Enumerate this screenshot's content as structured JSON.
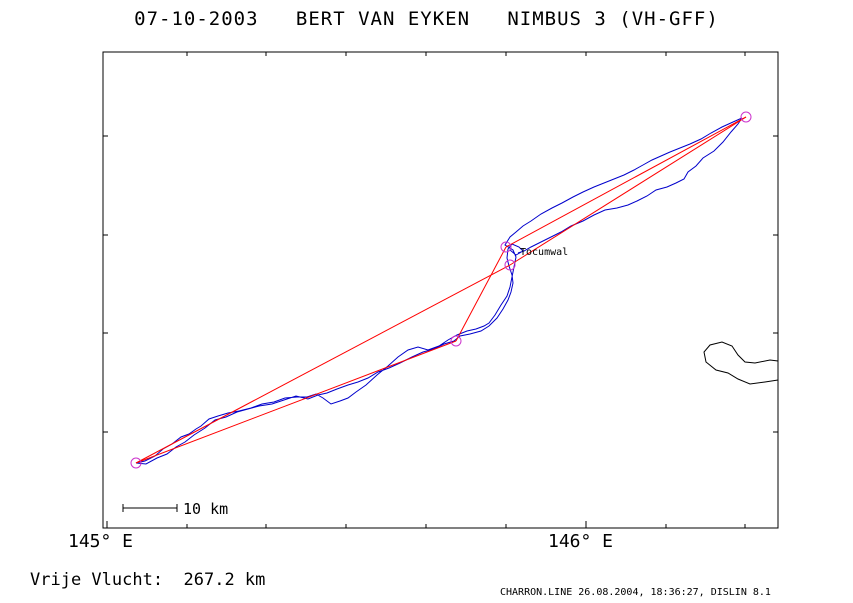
{
  "header": {
    "title": "07-10-2003   BERT VAN EYKEN   NIMBUS 3 (VH-GFF)"
  },
  "map": {
    "x_tick_labels": [
      "145° E",
      "146° E"
    ],
    "scale_bar_label": "10 km",
    "place_label": "Tocumwal",
    "colors": {
      "track": "#0000cc",
      "task": "#ff0000",
      "turnpoint": "#cc33cc",
      "coastline": "#000000",
      "frame": "#000000"
    }
  },
  "footer": {
    "distance_label": "Vrije Vlucht:  267.2 km",
    "credit": "CHARRON.LINE 26.08.2004, 18:36:27, DISLIN 8.1"
  }
}
